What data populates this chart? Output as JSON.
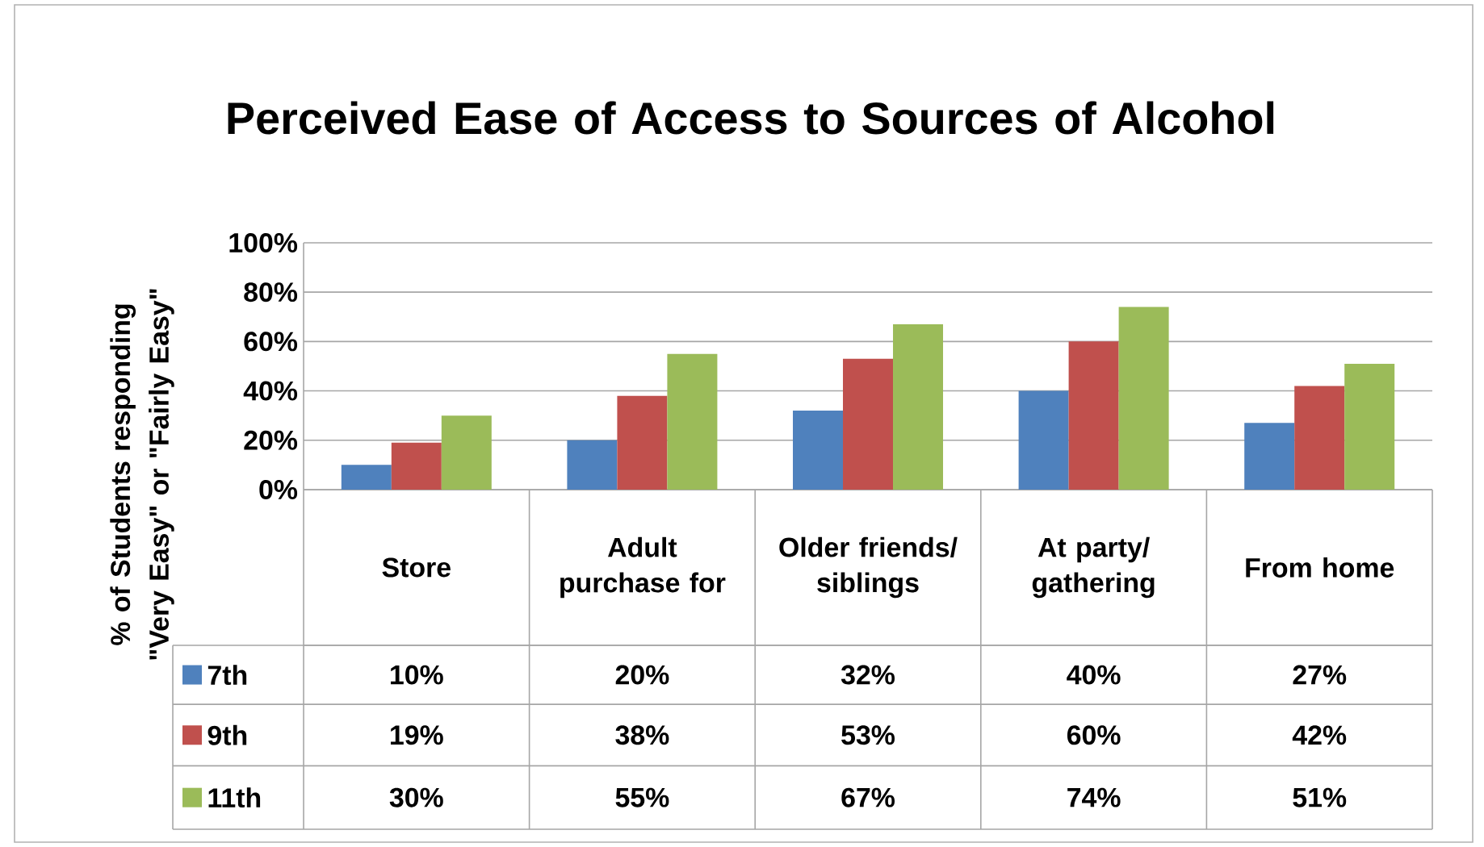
{
  "chart_data": {
    "type": "bar",
    "title": "Perceived Ease of Access to Sources of Alcohol",
    "ylabel": "% of Students responding \"Very Easy\" or \"Fairly Easy\"",
    "categories": [
      "Store",
      "Adult purchase for",
      "Older friends/ siblings",
      "At party/ gathering",
      "From home"
    ],
    "series": [
      {
        "name": "7th",
        "color": "#4f81bd",
        "values": [
          10,
          20,
          32,
          40,
          27
        ],
        "value_labels": [
          "10%",
          "20%",
          "32%",
          "40%",
          "27%"
        ]
      },
      {
        "name": "9th",
        "color": "#c0504d",
        "values": [
          19,
          38,
          53,
          60,
          42
        ],
        "value_labels": [
          "19%",
          "38%",
          "53%",
          "60%",
          "42%"
        ]
      },
      {
        "name": "11th",
        "color": "#9bbb59",
        "values": [
          30,
          55,
          67,
          74,
          51
        ],
        "value_labels": [
          "30%",
          "55%",
          "67%",
          "74%",
          "51%"
        ]
      }
    ],
    "ylim": [
      0,
      100
    ],
    "yticks": [
      {
        "value": 0,
        "label": "0%"
      },
      {
        "value": 20,
        "label": "20%"
      },
      {
        "value": 40,
        "label": "40%"
      },
      {
        "value": 60,
        "label": "60%"
      },
      {
        "value": 80,
        "label": "80%"
      },
      {
        "value": 100,
        "label": "100%"
      }
    ],
    "grid": "y",
    "legend": "bottom"
  }
}
